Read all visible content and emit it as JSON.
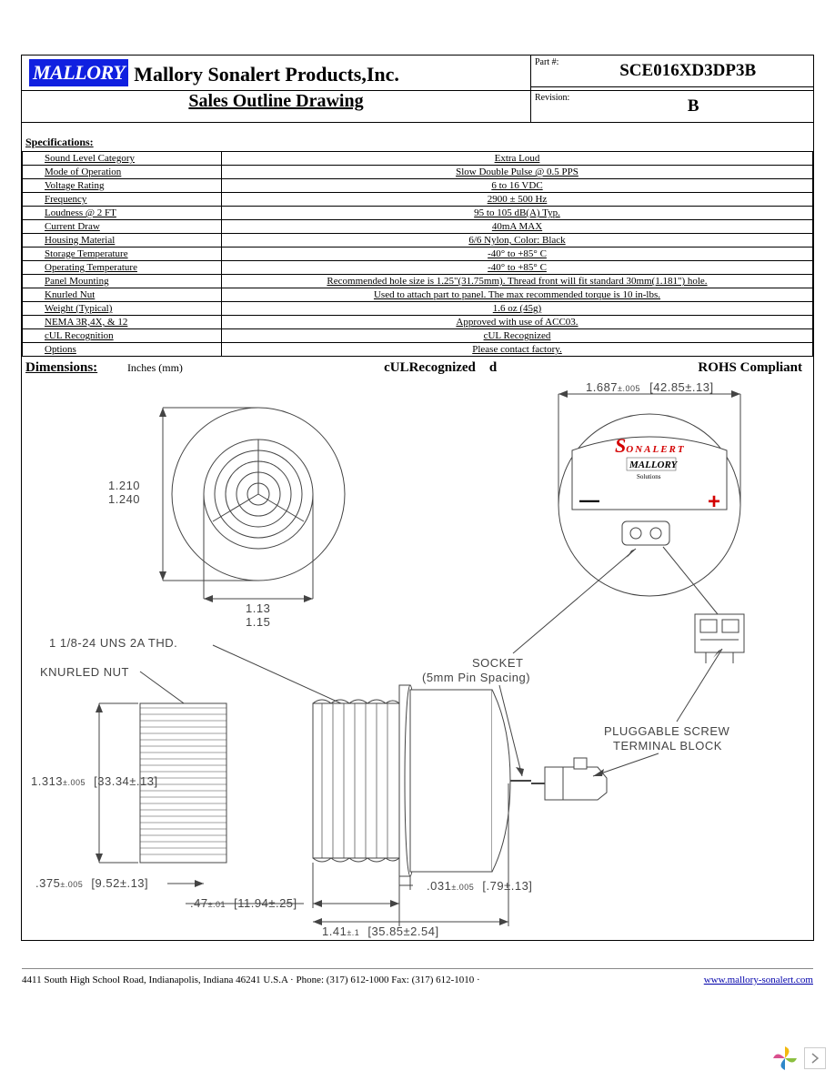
{
  "header": {
    "logo_text": "MALLORY",
    "company": "Mallory Sonalert Products,Inc.",
    "subtitle": "Sales Outline Drawing",
    "part_label": "Part #:",
    "part_value": "SCE016XD3DP3B",
    "rev_label": "Revision:",
    "rev_value": "B"
  },
  "spec_title": "Specifications:",
  "specs": [
    {
      "k": "Sound Level Category",
      "v": "Extra Loud"
    },
    {
      "k": "Mode of Operation",
      "v": "Slow Double Pulse @ 0.5 PPS"
    },
    {
      "k": "Voltage Rating",
      "v": "6 to 16 VDC"
    },
    {
      "k": "Frequency",
      "v": "2900 ± 500 Hz"
    },
    {
      "k": "Loudness @ 2 FT",
      "v": "95 to 105 dB(A) Typ."
    },
    {
      "k": "Current Draw",
      "v": "40mA MAX"
    },
    {
      "k": "Housing Material",
      "v": "6/6 Nylon, Color: Black"
    },
    {
      "k": "Storage Temperature",
      "v": "-40° to +85° C"
    },
    {
      "k": "Operating Temperature",
      "v": "-40° to +85° C"
    },
    {
      "k": "Panel Mounting",
      "v": "Recommended hole size is 1.25\"(31.75mm).  Thread front will fit standard 30mm(1.181\") hole."
    },
    {
      "k": "Knurled Nut",
      "v": "Used to attach part to panel.  The max recommended torque is 10 in-lbs."
    },
    {
      "k": "Weight (Typical)",
      "v": "1.6 oz (45g)"
    },
    {
      "k": "NEMA 3R,4X, & 12",
      "v": "Approved with use of ACC03."
    },
    {
      "k": "cUL Recognition",
      "v": "cUL Recognized"
    },
    {
      "k": "Options",
      "v": "Please contact factory."
    }
  ],
  "dim": {
    "label": "Dimensions:",
    "units": "Inches (mm)",
    "cul": "cULRecognized",
    "cul_d": "d",
    "rohs": "ROHS Compliant"
  },
  "drawing": {
    "front": {
      "dia_min": "1.210",
      "dia_max": "1.240",
      "thread_min": "1.13",
      "thread_max": "1.15"
    },
    "rear": {
      "width": "1.687",
      "width_tol": "±.005",
      "width_mm": "[42.85±.13]",
      "sonalert": "SONALERT",
      "mallory": "MALLORY",
      "solutions": "Solutions",
      "minus": "—",
      "plus": "+"
    },
    "side": {
      "thread_note": "1 1/8-24 UNS 2A THD.",
      "knurled": "KNURLED NUT",
      "h": "1.313",
      "h_tol": "±.005",
      "h_mm": "[33.34±.13]",
      "base": " .375",
      "base_tol": "±.005",
      "base_mm": "[9.52±.13]",
      "w47": ".47",
      "w47_tol": "±.01",
      "w47_mm": "[11.94±.25]",
      "w141": "1.41",
      "w141_tol": "±.1",
      "w141_mm": "[35.85±2.54]",
      "w031": ".031",
      "w031_tol": "±.005",
      "w031_mm": "[.79±.13]"
    },
    "callouts": {
      "socket1": "SOCKET",
      "socket2": "(5mm Pin Spacing)",
      "term1": "PLUGGABLE SCREW",
      "term2": "TERMINAL BLOCK"
    }
  },
  "footer": {
    "addr": "4411 South High School Road, Indianapolis, Indiana 46241 U.S.A · Phone: (317) 612-1000 Fax: (317) 612-1010 ·",
    "url": "www.mallory-sonalert.com"
  },
  "colors": {
    "logo_bg": "#1020e0",
    "plus": "#d40000",
    "sonalert": "#d40000",
    "line": "#444444"
  }
}
